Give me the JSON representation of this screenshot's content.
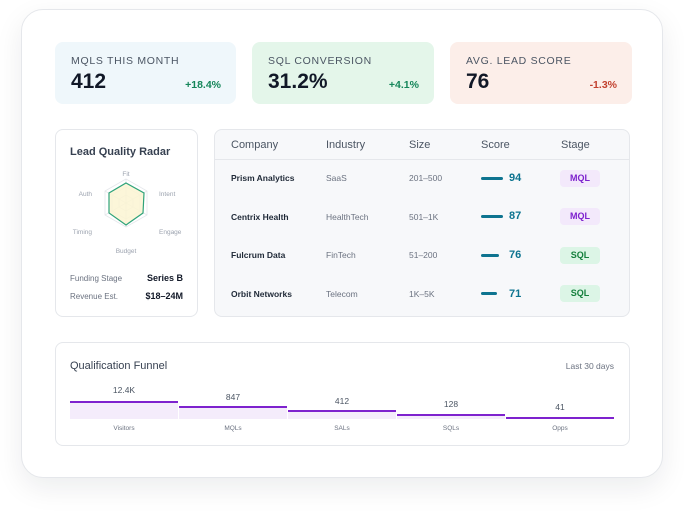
{
  "kpis": [
    {
      "label": "MQLS THIS MONTH",
      "value": "412",
      "delta": "+18.4%"
    },
    {
      "label": "SQL CONVERSION",
      "value": "31.2%",
      "delta": "+4.1%"
    },
    {
      "label": "AVG. LEAD SCORE",
      "value": "76",
      "delta": "-1.3%"
    }
  ],
  "radar": {
    "title": "Lead Quality Radar",
    "axes": [
      "Fit",
      "Intent",
      "Engage",
      "Budget",
      "Timing",
      "Auth"
    ],
    "meta": [
      {
        "label": "Funding Stage",
        "value": "Series B"
      },
      {
        "label": "Revenue Est.",
        "value": "$18–24M"
      }
    ]
  },
  "table": {
    "columns": [
      "Company",
      "Industry",
      "Size",
      "Score",
      "Stage"
    ],
    "rows": [
      {
        "company": "Prism Analytics",
        "industry": "SaaS",
        "size": "201–500",
        "score": "94",
        "stage": "MQL"
      },
      {
        "company": "Centrix Health",
        "industry": "HealthTech",
        "size": "501–1K",
        "score": "87",
        "stage": "MQL"
      },
      {
        "company": "Fulcrum Data",
        "industry": "FinTech",
        "size": "51–200",
        "score": "76",
        "stage": "SQL"
      },
      {
        "company": "Orbit Networks",
        "industry": "Telecom",
        "size": "1K–5K",
        "score": "71",
        "stage": "SQL"
      }
    ]
  },
  "funnel": {
    "title": "Qualification Funnel",
    "range": "Last 30 days",
    "stages": [
      {
        "value": "12.4K",
        "label": "Visitors"
      },
      {
        "value": "847",
        "label": "MQLs"
      },
      {
        "value": "412",
        "label": "SALs"
      },
      {
        "value": "128",
        "label": "SQLs"
      },
      {
        "value": "41",
        "label": "Opps"
      }
    ]
  },
  "colors": {
    "accent": "#0e7490",
    "funnel": "#7e22ce",
    "positive": "#15865a",
    "negative": "#c2412f"
  }
}
